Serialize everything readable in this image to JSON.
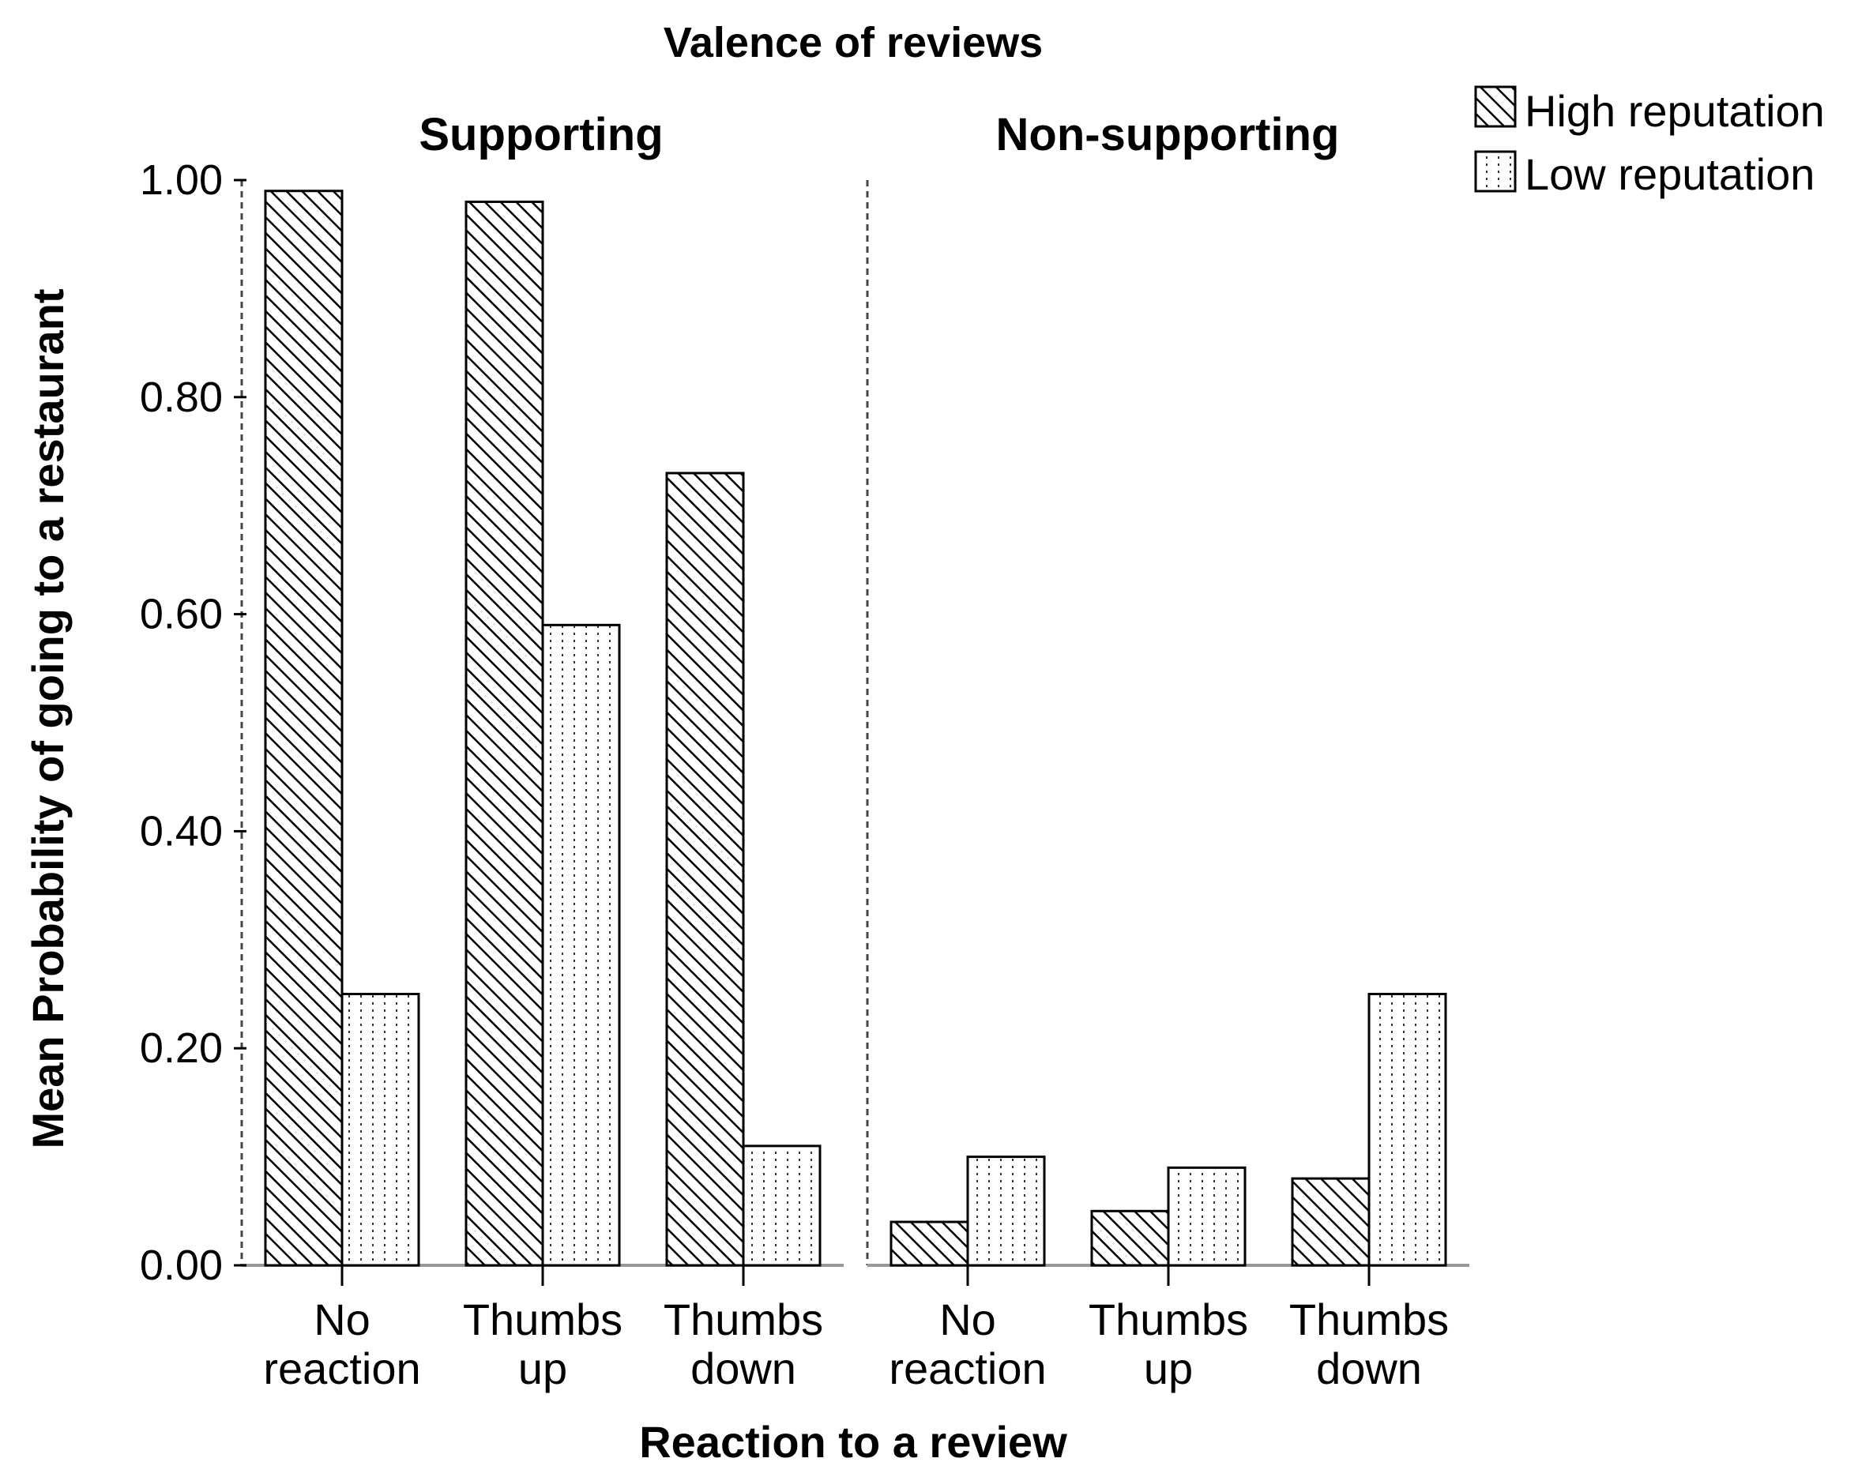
{
  "chart_data": {
    "type": "bar",
    "title": "Valence of reviews",
    "xlabel": "Reaction to a review",
    "ylabel": "Mean Probability of going to a restaurant",
    "ylim": [
      0,
      1.0
    ],
    "yticks": [
      "0.00",
      "0.20",
      "0.40",
      "0.60",
      "0.80",
      "1.00"
    ],
    "grid": false,
    "legend_position": "top-right",
    "series": [
      {
        "name": "High reputation",
        "pattern": "diagonal-hatch"
      },
      {
        "name": "Low reputation",
        "pattern": "dotted-vertical"
      }
    ],
    "panels": [
      {
        "name": "Supporting",
        "categories": [
          [
            "No",
            "reaction"
          ],
          [
            "Thumbs",
            "up"
          ],
          [
            "Thumbs",
            "down"
          ]
        ],
        "values": {
          "High reputation": [
            0.99,
            0.98,
            0.73
          ],
          "Low reputation": [
            0.25,
            0.59,
            0.11
          ]
        }
      },
      {
        "name": "Non-supporting",
        "categories": [
          [
            "No",
            "reaction"
          ],
          [
            "Thumbs",
            "up"
          ],
          [
            "Thumbs",
            "down"
          ]
        ],
        "values": {
          "High reputation": [
            0.04,
            0.05,
            0.08
          ],
          "Low reputation": [
            0.1,
            0.09,
            0.25
          ]
        }
      }
    ]
  }
}
